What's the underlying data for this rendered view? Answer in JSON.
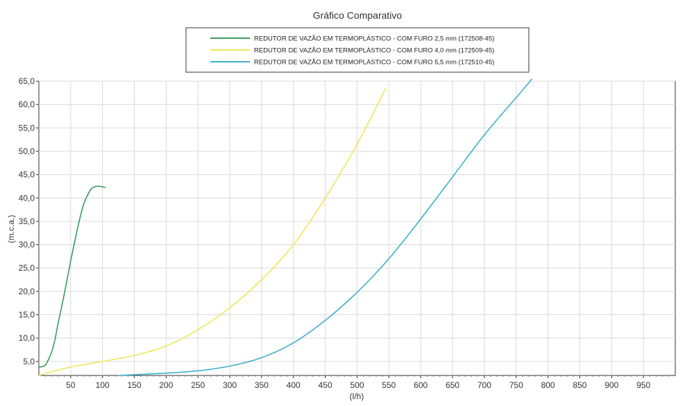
{
  "chart_data": {
    "type": "line",
    "title": "Gráfico Comparativo",
    "xlabel": "(l/h)",
    "ylabel": "(m.c.a.)",
    "xlim": [
      0,
      1000
    ],
    "ylim": [
      2,
      65
    ],
    "grid": true,
    "legend_position": "top-center",
    "x_ticks": [
      50,
      100,
      150,
      200,
      250,
      300,
      350,
      400,
      450,
      500,
      550,
      600,
      650,
      700,
      750,
      800,
      850,
      900,
      950
    ],
    "y_ticks": [
      "5,0",
      "10,0",
      "15,0",
      "20,0",
      "25,0",
      "30,0",
      "35,0",
      "40,0",
      "45,0",
      "50,0",
      "55,0",
      "60,0",
      "65,0"
    ],
    "y_tick_values": [
      5,
      10,
      15,
      20,
      25,
      30,
      35,
      40,
      45,
      50,
      55,
      60,
      65
    ],
    "series": [
      {
        "name": "REDUTOR DE VAZÃO EM TERMOPLÁSTICO - COM FURO 2,5 mm (172508-45)",
        "color": "#3a9a5c",
        "x": [
          0,
          5,
          10,
          15,
          20,
          25,
          30,
          40,
          50,
          60,
          70,
          80,
          85,
          90,
          95,
          100,
          105
        ],
        "y": [
          3.8,
          3.9,
          4.2,
          5.4,
          7.0,
          9.5,
          13.0,
          19.5,
          26.5,
          33.0,
          38.5,
          41.5,
          42.2,
          42.5,
          42.5,
          42.4,
          42.2
        ]
      },
      {
        "name": "REDUTOR DE VAZÃO EM TERMOPLÁSTICO - COM FURO 4,0 mm (172509-45)",
        "color": "#f0e65a",
        "x": [
          0,
          50,
          100,
          150,
          200,
          250,
          300,
          350,
          400,
          450,
          500,
          545
        ],
        "y": [
          2.0,
          3.8,
          5.0,
          6.3,
          8.3,
          11.8,
          16.5,
          22.5,
          30.0,
          40.0,
          51.5,
          63.5
        ]
      },
      {
        "name": "REDUTOR DE VAZÃO EM TERMOPLÁSTICO - COM FURO 5,5 mm (172510-45)",
        "color": "#3fb0c9",
        "x": [
          125,
          200,
          250,
          300,
          350,
          400,
          450,
          500,
          550,
          600,
          650,
          700,
          750,
          775
        ],
        "y": [
          2.0,
          2.5,
          3.0,
          4.0,
          5.8,
          9.0,
          13.8,
          19.8,
          27.0,
          35.5,
          44.5,
          53.5,
          61.5,
          65.5
        ]
      }
    ]
  }
}
